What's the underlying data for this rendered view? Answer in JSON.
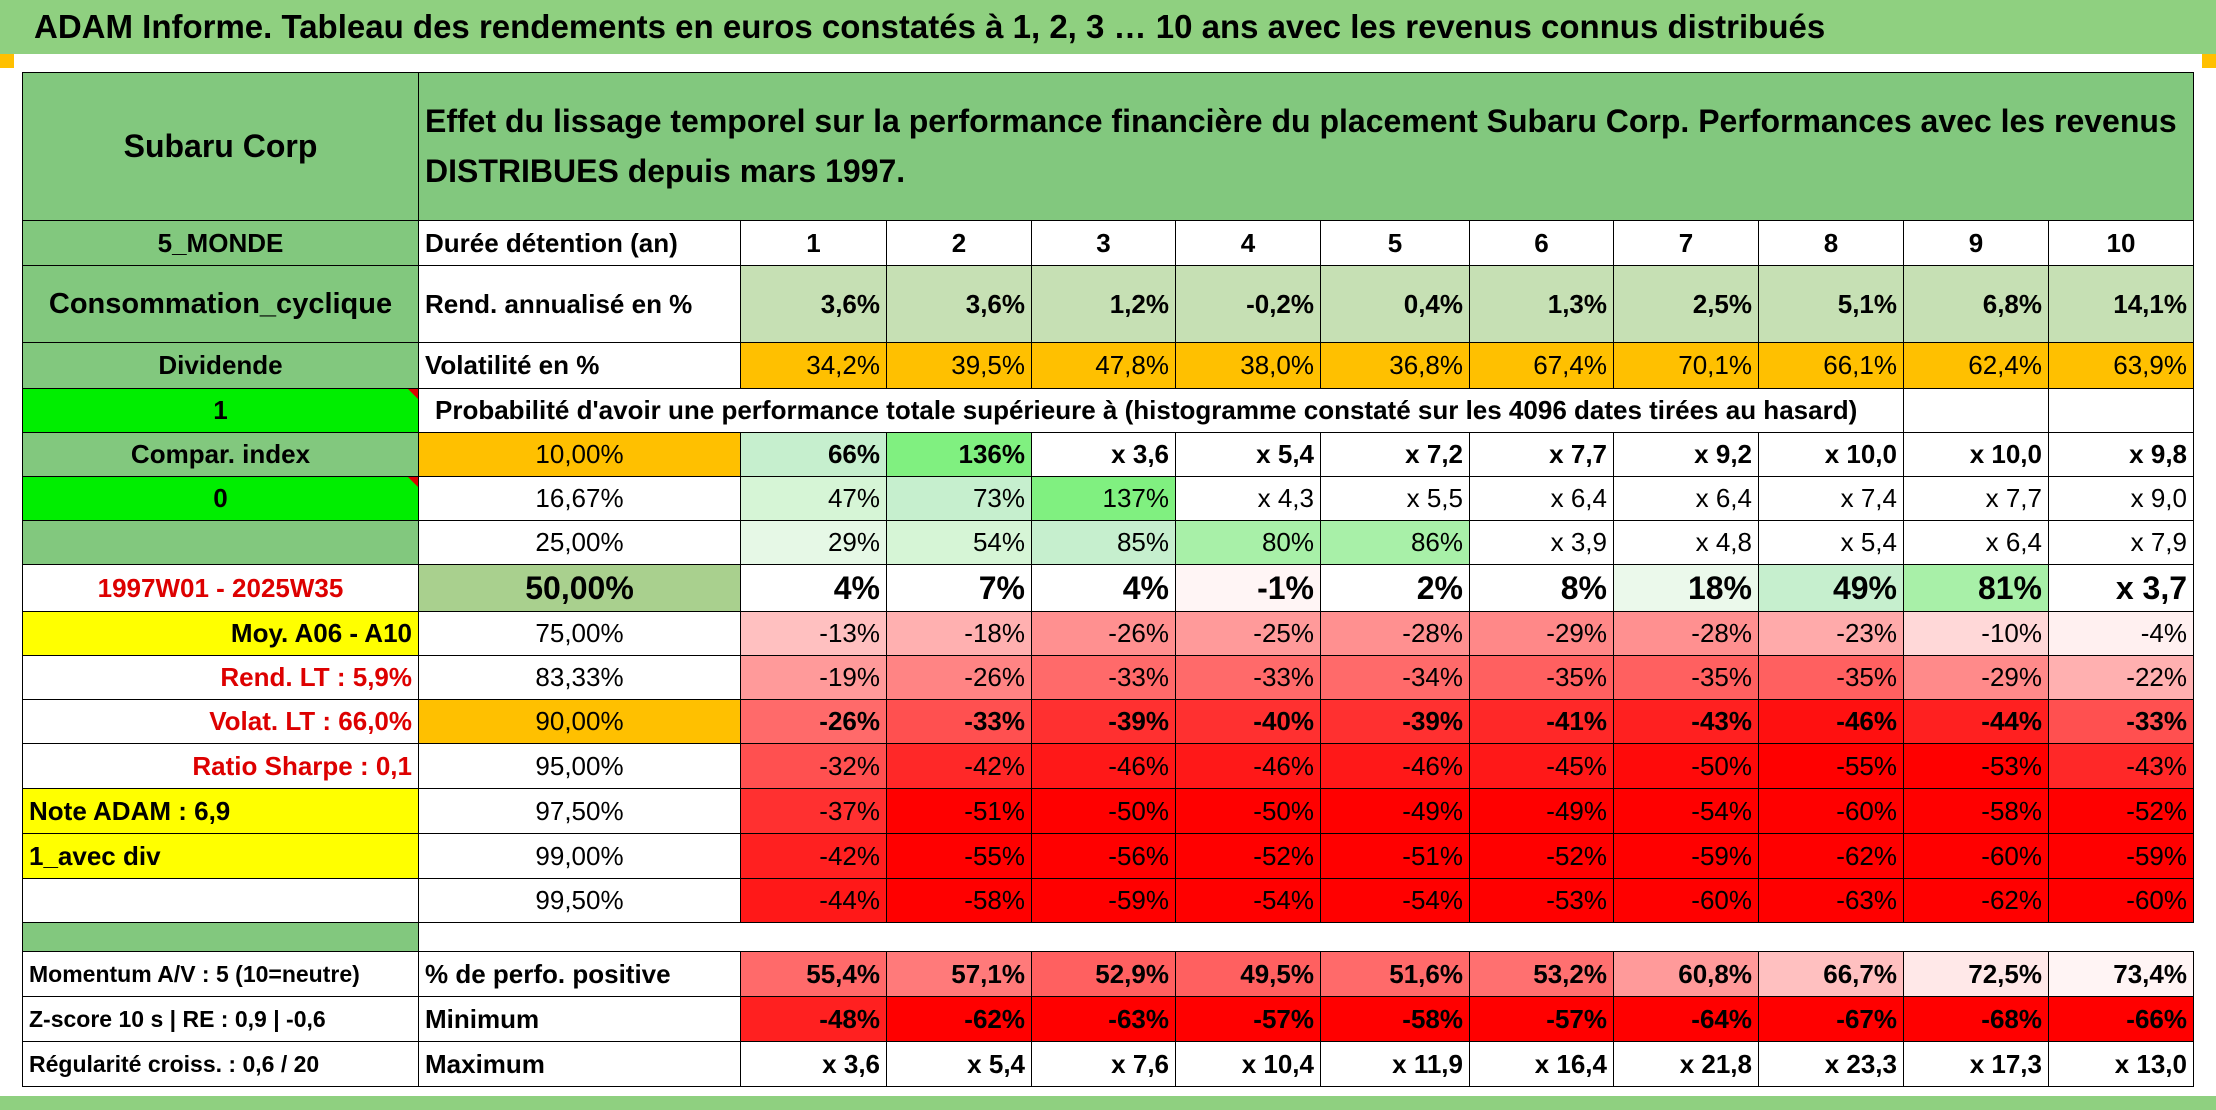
{
  "title": "ADAM Informe. Tableau des rendements en euros constatés à 1, 2, 3 … 10 ans avec les revenus connus distribués",
  "company": "Subaru Corp",
  "header_text": "Effet du lissage temporel sur la performance financière du placement Subaru Corp. Performances avec les revenus DISTRIBUES depuis mars 1997.",
  "left_labels": {
    "region": "5_MONDE",
    "sector": "Consommation_cyclique",
    "dividend": "Dividende",
    "flag1": "1",
    "compar_index": "Compar. index",
    "flag0": "0",
    "period": "1997W01 - 2025W35",
    "moy": "Moy. A06 - A10",
    "rend_lt": "Rend. LT :   5,9%",
    "volat_lt": "Volat. LT :   66,0%",
    "sharpe": "Ratio Sharpe :   0,1",
    "note": "Note ADAM : 6,9",
    "avec_div": "1_avec div",
    "momentum": "Momentum A/V : 5 (10=neutre)",
    "zscore": "Z-score 10 s | RE : 0,9 | -0,6",
    "regularite": "Régularité croiss. : 0,6 / 20"
  },
  "row_labels": {
    "duree": "Durée détention (an)",
    "rend": "Rend. annualisé en %",
    "vol": "Volatilité en %",
    "proba": "Probabilité d'avoir une performance totale supérieure à (histogramme constaté sur les 4096 dates tirées au hasard)",
    "positive": "% de perfo. positive",
    "minimum": "Minimum",
    "maximum": "Maximum"
  },
  "years": [
    "1",
    "2",
    "3",
    "4",
    "5",
    "6",
    "7",
    "8",
    "9",
    "10"
  ],
  "rend": [
    "3,6%",
    "3,6%",
    "1,2%",
    "-0,2%",
    "0,4%",
    "1,3%",
    "2,5%",
    "5,1%",
    "6,8%",
    "14,1%"
  ],
  "vol": [
    "34,2%",
    "39,5%",
    "47,8%",
    "38,0%",
    "36,8%",
    "67,4%",
    "70,1%",
    "66,1%",
    "62,4%",
    "63,9%"
  ],
  "quantiles": [
    {
      "p": "10,00%",
      "v": [
        "66%",
        "136%",
        "x 3,6",
        "x 5,4",
        "x 7,2",
        "x 7,7",
        "x 9,2",
        "x 10,0",
        "x 10,0",
        "x 9,8"
      ]
    },
    {
      "p": "16,67%",
      "v": [
        "47%",
        "73%",
        "137%",
        "x 4,3",
        "x 5,5",
        "x 6,4",
        "x 6,4",
        "x 7,4",
        "x 7,7",
        "x 9,0"
      ]
    },
    {
      "p": "25,00%",
      "v": [
        "29%",
        "54%",
        "85%",
        "80%",
        "86%",
        "x 3,9",
        "x 4,8",
        "x 5,4",
        "x 6,4",
        "x 7,9"
      ]
    },
    {
      "p": "50,00%",
      "v": [
        "4%",
        "7%",
        "4%",
        "-1%",
        "2%",
        "8%",
        "18%",
        "49%",
        "81%",
        "x 3,7"
      ]
    },
    {
      "p": "75,00%",
      "v": [
        "-13%",
        "-18%",
        "-26%",
        "-25%",
        "-28%",
        "-29%",
        "-28%",
        "-23%",
        "-10%",
        "-4%"
      ]
    },
    {
      "p": "83,33%",
      "v": [
        "-19%",
        "-26%",
        "-33%",
        "-33%",
        "-34%",
        "-35%",
        "-35%",
        "-35%",
        "-29%",
        "-22%"
      ]
    },
    {
      "p": "90,00%",
      "v": [
        "-26%",
        "-33%",
        "-39%",
        "-40%",
        "-39%",
        "-41%",
        "-43%",
        "-46%",
        "-44%",
        "-33%"
      ]
    },
    {
      "p": "95,00%",
      "v": [
        "-32%",
        "-42%",
        "-46%",
        "-46%",
        "-46%",
        "-45%",
        "-50%",
        "-55%",
        "-53%",
        "-43%"
      ]
    },
    {
      "p": "97,50%",
      "v": [
        "-37%",
        "-51%",
        "-50%",
        "-50%",
        "-49%",
        "-49%",
        "-54%",
        "-60%",
        "-58%",
        "-52%"
      ]
    },
    {
      "p": "99,00%",
      "v": [
        "-42%",
        "-55%",
        "-56%",
        "-52%",
        "-51%",
        "-52%",
        "-59%",
        "-62%",
        "-60%",
        "-59%"
      ]
    },
    {
      "p": "99,50%",
      "v": [
        "-44%",
        "-58%",
        "-59%",
        "-54%",
        "-54%",
        "-53%",
        "-60%",
        "-63%",
        "-62%",
        "-60%"
      ]
    }
  ],
  "positive": [
    "55,4%",
    "57,1%",
    "52,9%",
    "49,5%",
    "51,6%",
    "53,2%",
    "60,8%",
    "66,7%",
    "72,5%",
    "73,4%"
  ],
  "minimum": [
    "-48%",
    "-62%",
    "-63%",
    "-57%",
    "-58%",
    "-57%",
    "-64%",
    "-67%",
    "-68%",
    "-66%"
  ],
  "maximum": [
    "x 3,6",
    "x 5,4",
    "x 7,6",
    "x 10,4",
    "x 11,9",
    "x 16,4",
    "x 21,8",
    "x 23,3",
    "x 17,3",
    "x 13,0"
  ],
  "colors": {
    "header_green": "#82c87e",
    "light_green": "#c6e0b4",
    "bright_green": "#00ee00",
    "orange": "#ffc000",
    "yellow": "#ffff00",
    "red_text": "#dd0000",
    "quantile_bg": [
      [
        "#c6efce",
        "#80f080",
        "#ffffff",
        "#ffffff",
        "#ffffff",
        "#ffffff",
        "#ffffff",
        "#ffffff",
        "#ffffff",
        "#ffffff"
      ],
      [
        "#d6f5d6",
        "#c6efce",
        "#80f080",
        "#ffffff",
        "#ffffff",
        "#ffffff",
        "#ffffff",
        "#ffffff",
        "#ffffff",
        "#ffffff"
      ],
      [
        "#e6f8e6",
        "#d6f5d6",
        "#c6efce",
        "#a8f0a8",
        "#a8f0a8",
        "#ffffff",
        "#ffffff",
        "#ffffff",
        "#ffffff",
        "#ffffff"
      ],
      [
        "#ffffff",
        "#ffffff",
        "#ffffff",
        "#fff5f5",
        "#ffffff",
        "#ffffff",
        "#ebf9eb",
        "#c6efce",
        "#a8f0a8",
        "#ffffff"
      ],
      [
        "#ffc0c0",
        "#ffb0b0",
        "#ff9090",
        "#ff9a9a",
        "#ff9090",
        "#ff8888",
        "#ff9090",
        "#ffaaaa",
        "#ffd8d8",
        "#fff0f0"
      ],
      [
        "#ff9a9a",
        "#ff8484",
        "#ff6a6a",
        "#ff6a6a",
        "#ff6a6a",
        "#ff6060",
        "#ff6060",
        "#ff6060",
        "#ff8a8a",
        "#ffb0b0"
      ],
      [
        "#ff6a6a",
        "#ff5050",
        "#ff3030",
        "#ff3030",
        "#ff3030",
        "#ff2828",
        "#ff2020",
        "#ff1010",
        "#ff2020",
        "#ff5050"
      ],
      [
        "#ff5050",
        "#ff2828",
        "#ff1818",
        "#ff1818",
        "#ff1818",
        "#ff1818",
        "#ff0a0a",
        "#ff0000",
        "#ff0000",
        "#ff2828"
      ],
      [
        "#ff3030",
        "#ff0000",
        "#ff0000",
        "#ff0000",
        "#ff0000",
        "#ff0000",
        "#ff0000",
        "#ff0000",
        "#ff0000",
        "#ff0000"
      ],
      [
        "#ff2020",
        "#ff0000",
        "#ff0000",
        "#ff0000",
        "#ff0000",
        "#ff0000",
        "#ff0000",
        "#ff0000",
        "#ff0000",
        "#ff0000"
      ],
      [
        "#ff1818",
        "#ff0000",
        "#ff0000",
        "#ff0000",
        "#ff0000",
        "#ff0000",
        "#ff0000",
        "#ff0000",
        "#ff0000",
        "#ff0000"
      ]
    ],
    "positive_bg": [
      "#ff6a6a",
      "#ff7a7a",
      "#ff6060",
      "#ff6060",
      "#ff6a6a",
      "#ff7070",
      "#ff9a9a",
      "#ffc0c0",
      "#ffe8e8",
      "#fff4f4"
    ],
    "minimum_bg": [
      "#ff2020",
      "#ff0000",
      "#ff0000",
      "#ff0000",
      "#ff0000",
      "#ff0000",
      "#ff0000",
      "#ff0000",
      "#ff0000",
      "#ff0000"
    ]
  }
}
